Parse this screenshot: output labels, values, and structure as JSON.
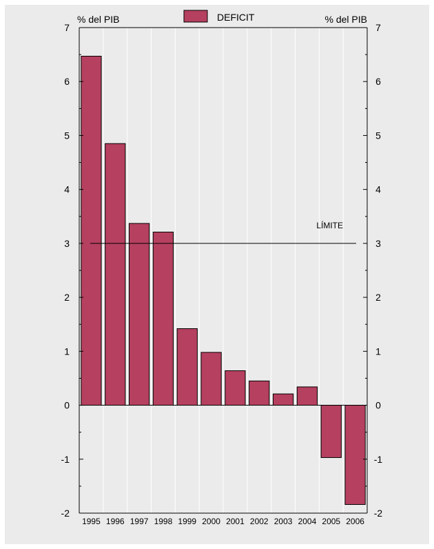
{
  "chart_data": {
    "type": "bar",
    "categories": [
      "1995",
      "1996",
      "1997",
      "1998",
      "1999",
      "2000",
      "2001",
      "2002",
      "2003",
      "2004",
      "2005",
      "2006"
    ],
    "series": [
      {
        "name": "DEFICIT",
        "values": [
          6.47,
          4.85,
          3.37,
          3.21,
          1.42,
          0.98,
          0.64,
          0.45,
          0.21,
          0.34,
          -0.97,
          -1.84
        ]
      }
    ],
    "ylim": [
      -2,
      7
    ],
    "yticks": [
      -2,
      -1,
      0,
      1,
      2,
      3,
      4,
      5,
      6,
      7
    ],
    "ylabel_left": "% del PIB",
    "ylabel_right": "% del PIB",
    "grid": "vertical",
    "legend": "top-center",
    "reference_line": {
      "label": "LÍMITE",
      "value": 3
    },
    "colors": {
      "bar": "#b5405f",
      "background": "#ebebeb",
      "grid": "#ffffff"
    }
  }
}
